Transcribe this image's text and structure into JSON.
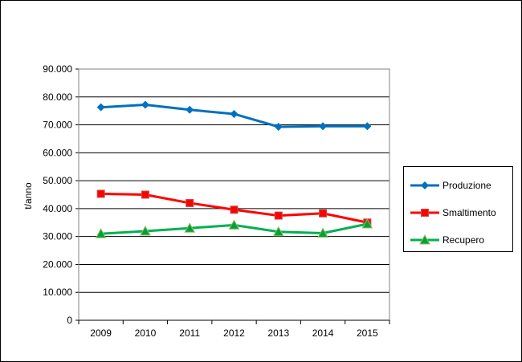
{
  "chart_data": {
    "type": "line",
    "title": "",
    "xlabel": "",
    "ylabel": "t/anno",
    "ylim": [
      0,
      90000
    ],
    "yticks": [
      "0",
      "10.000",
      "20.000",
      "30.000",
      "40.000",
      "50.000",
      "60.000",
      "70.000",
      "80.000",
      "90.000"
    ],
    "categories": [
      "2009",
      "2010",
      "2011",
      "2012",
      "2013",
      "2014",
      "2015"
    ],
    "grid": true,
    "legend_position": "right",
    "series": [
      {
        "name": "Produzione",
        "color": "#0070C0",
        "marker": "diamond",
        "values": [
          76300,
          77200,
          75400,
          73900,
          69300,
          69500,
          69500
        ]
      },
      {
        "name": "Smaltimento",
        "color": "#FF0000",
        "marker": "square",
        "values": [
          45300,
          45000,
          42000,
          39600,
          37500,
          38300,
          35000
        ]
      },
      {
        "name": "Recupero",
        "color": "#00B050",
        "marker": "triangle",
        "values": [
          31000,
          31900,
          33000,
          34100,
          31700,
          31200,
          34500
        ]
      }
    ]
  }
}
